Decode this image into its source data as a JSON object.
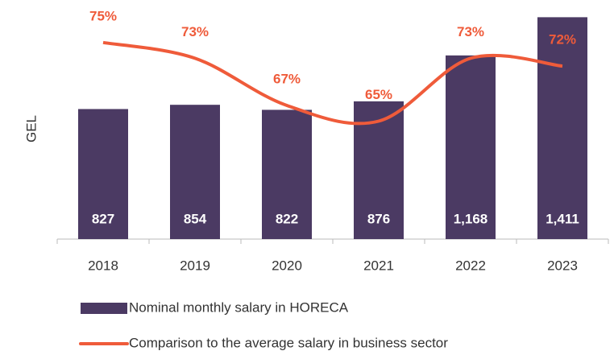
{
  "chart_data": {
    "type": "bar_line",
    "y_label": "GEL",
    "categories": [
      "2018",
      "2019",
      "2020",
      "2021",
      "2022",
      "2023"
    ],
    "ylim": [
      0,
      1500
    ],
    "y2lim": [
      50,
      80
    ],
    "series": [
      {
        "name": "Nominal monthly salary in HORECA",
        "type": "bar",
        "color": "#4b3a63",
        "values": [
          827,
          854,
          822,
          876,
          1168,
          1411
        ],
        "value_labels": [
          "827",
          "854",
          "822",
          "876",
          "1,168",
          "1,411"
        ]
      },
      {
        "name": "Comparison to the average salary in business sector",
        "type": "line",
        "axis": "y2",
        "color": "#ef5b3a",
        "values": [
          75,
          73,
          67,
          65,
          73,
          72
        ],
        "value_labels": [
          "75%",
          "73%",
          "67%",
          "65%",
          "73%",
          "72%"
        ]
      }
    ]
  }
}
